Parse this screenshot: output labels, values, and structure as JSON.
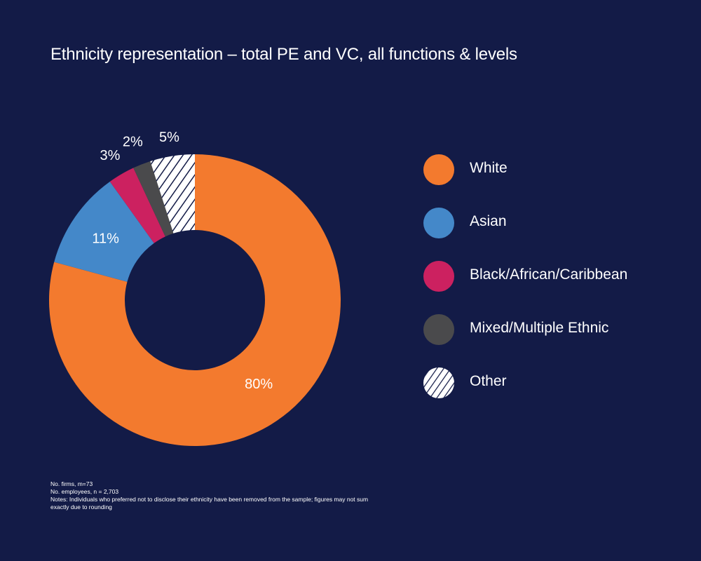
{
  "title": "Ethnicity representation – total PE and VC, all functions & levels",
  "chart_data": {
    "type": "pie",
    "donut": true,
    "title": "Ethnicity representation – total PE and VC, all functions & levels",
    "legend_position": "right",
    "slices": [
      {
        "label": "White",
        "value": 80,
        "display": "80%",
        "color": "#f37a2e",
        "pattern": "none"
      },
      {
        "label": "Asian",
        "value": 11,
        "display": "11%",
        "color": "#4488c9",
        "pattern": "none"
      },
      {
        "label": "Black/African/Caribbean",
        "value": 3,
        "display": "3%",
        "color": "#cc2160",
        "pattern": "none"
      },
      {
        "label": "Mixed/Multiple Ethnic",
        "value": 2,
        "display": "2%",
        "color": "#4a4a4c",
        "pattern": "none"
      },
      {
        "label": "Other",
        "value": 5,
        "display": "5%",
        "color": "#ffffff",
        "pattern": "hatch"
      }
    ]
  },
  "notes": [
    "No. firms, m=73",
    "No. employees, n = 2,703",
    "Notes: Individuals who preferred not to disclose their ethnicity have been removed from the sample; figures may not sum exactly due to rounding"
  ]
}
